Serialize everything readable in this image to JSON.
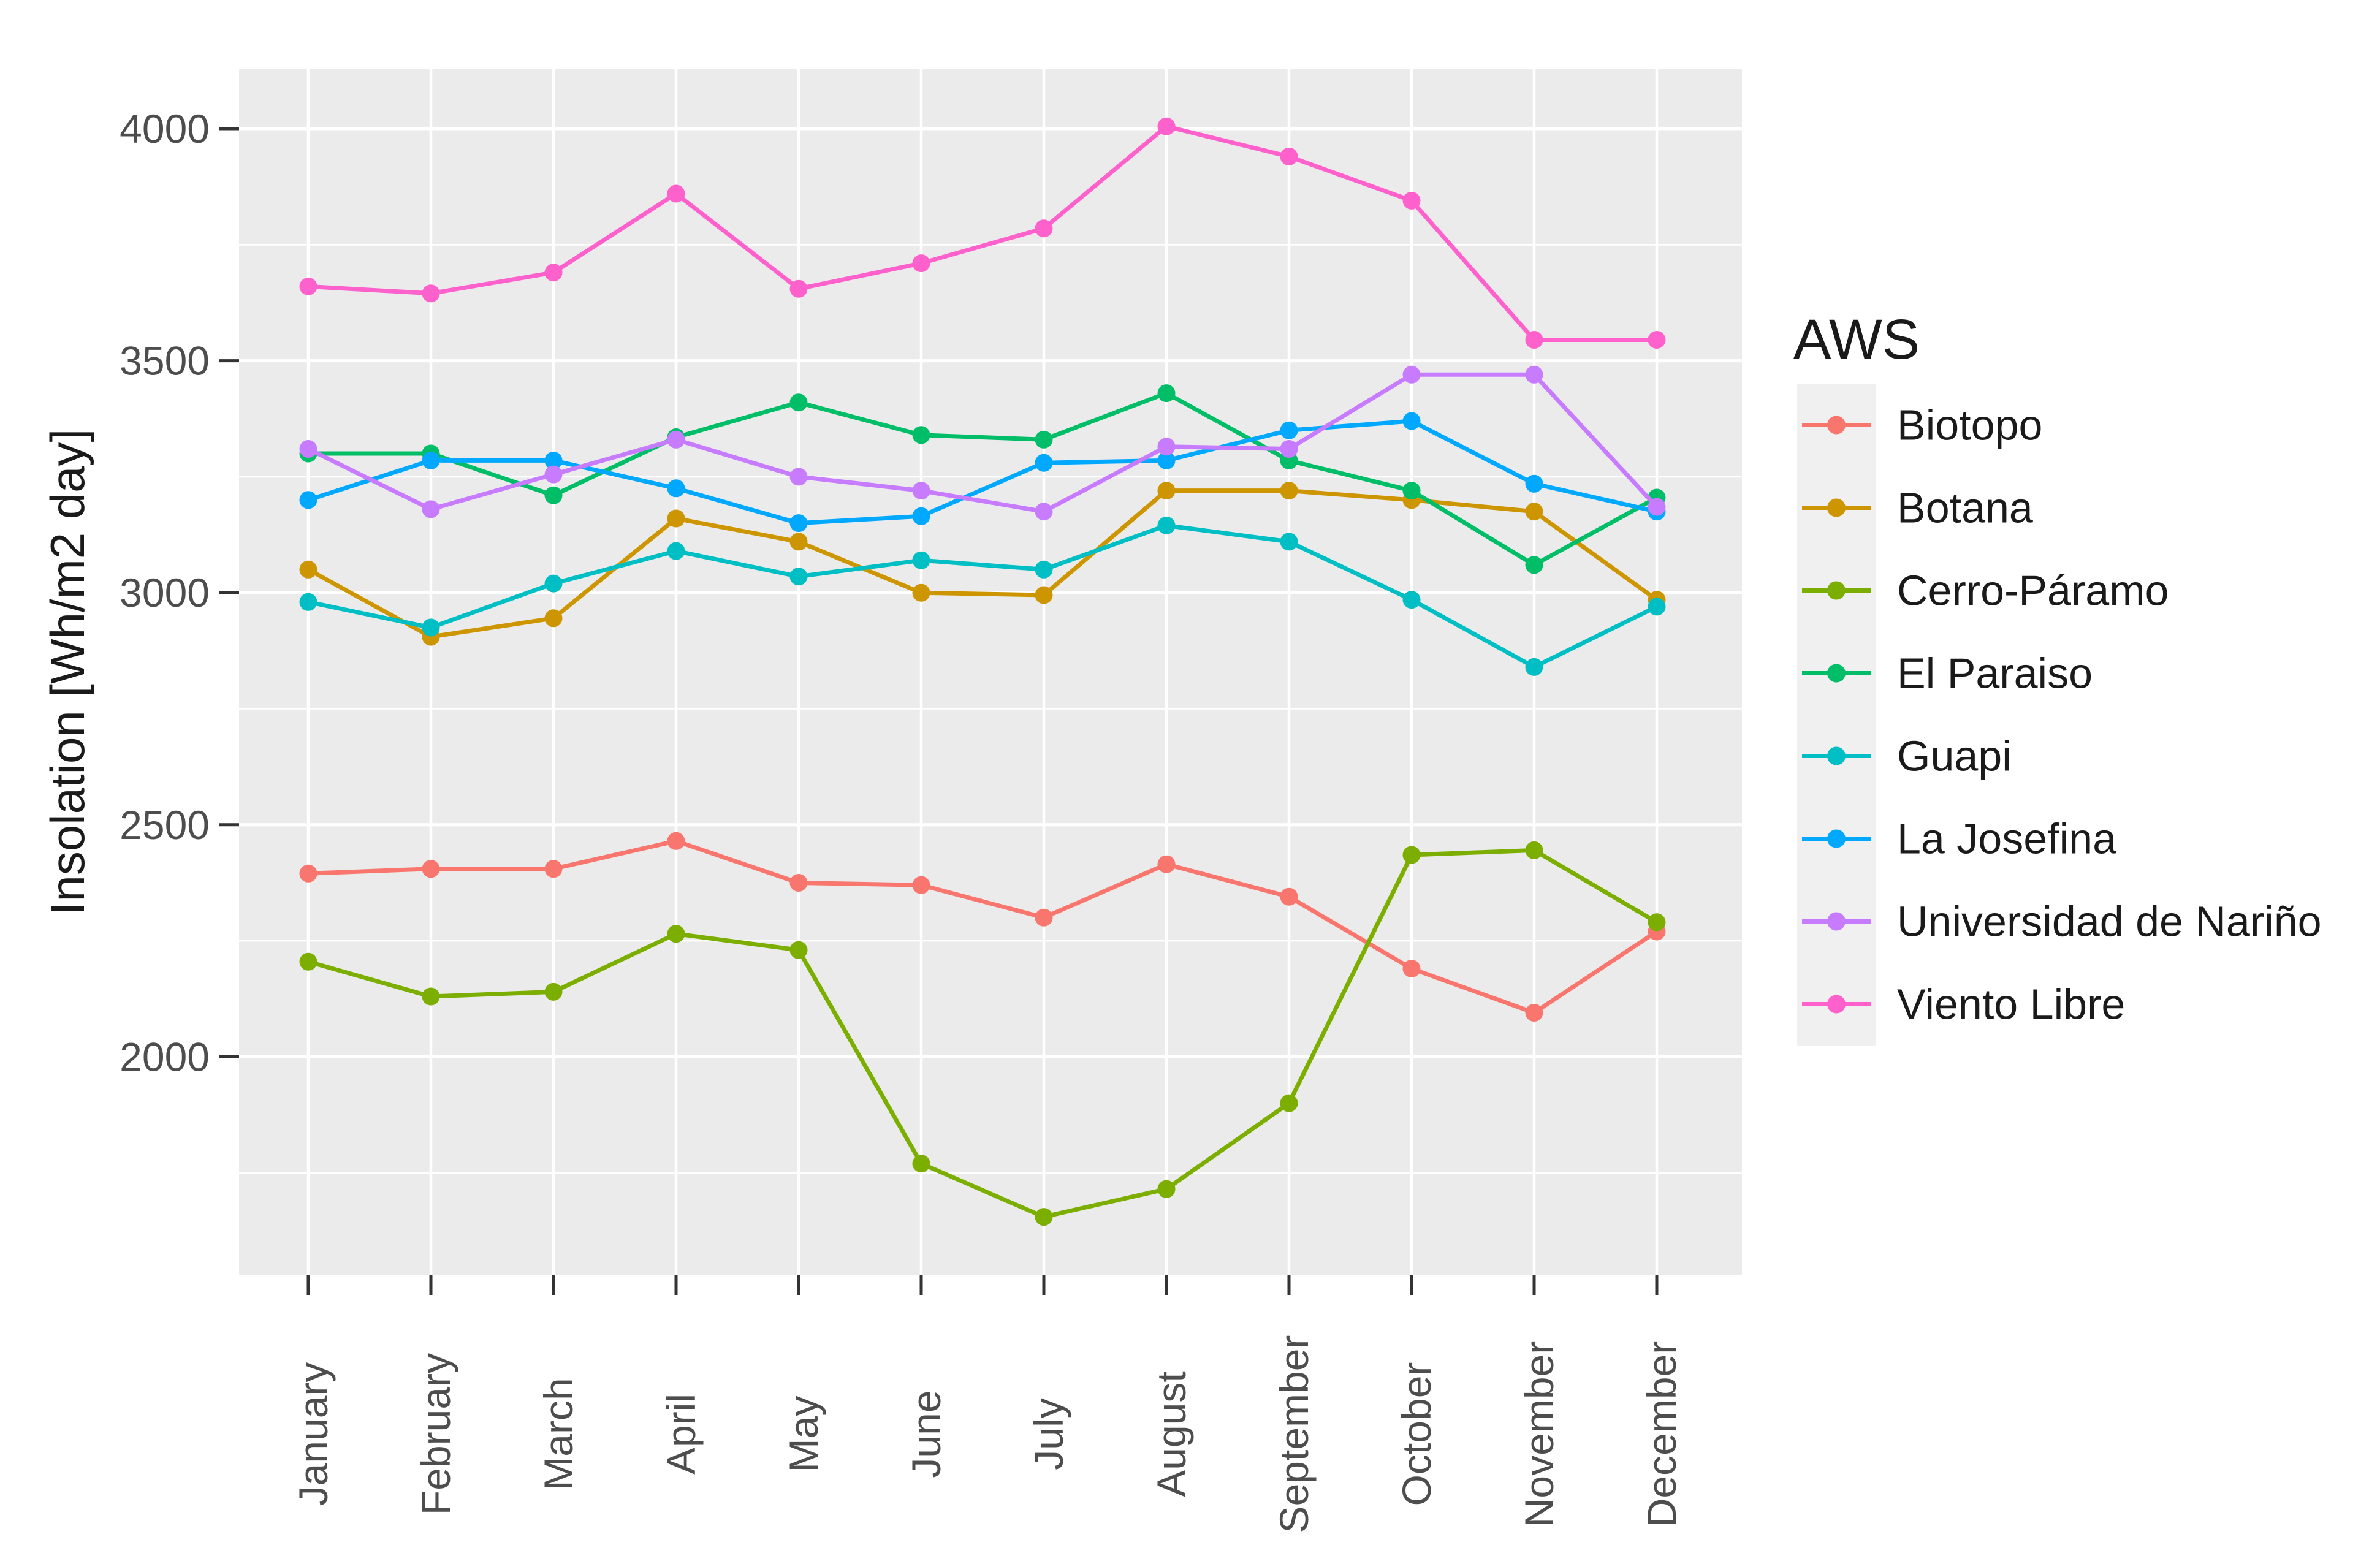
{
  "figure": {
    "kind": "ggplot-style line chart",
    "background": "#ffffff",
    "panel_background": "#EBEBEB",
    "grid_color": "#FFFFFF",
    "axis_text_color": "#4D4D4D",
    "tick_color": "#333333",
    "title_text_color": "#1a1a1a"
  },
  "chart_data": {
    "type": "line",
    "title": "",
    "xlabel": "",
    "ylabel": "Insolation [Wh/m2 day]",
    "categories": [
      "January",
      "February",
      "March",
      "April",
      "May",
      "June",
      "July",
      "August",
      "September",
      "October",
      "November",
      "December"
    ],
    "y_ticks": [
      2000,
      2500,
      3000,
      3500,
      4000
    ],
    "y_minor_gridlines": [
      1750,
      2250,
      2750,
      3250,
      3750
    ],
    "ylim": [
      1530,
      4128
    ],
    "grid": "white major+minor horizontal lines and vertical line per month on gray panel",
    "legend_position": "right",
    "legend_title": "AWS",
    "marker": "filled-circle",
    "series": [
      {
        "name": "Biotopo",
        "color": "#F8766D",
        "values": [
          2395,
          2405,
          2405,
          2465,
          2375,
          2370,
          2300,
          2415,
          2345,
          2190,
          2095,
          2270
        ]
      },
      {
        "name": "Botana",
        "color": "#CD9600",
        "values": [
          3050,
          2905,
          2945,
          3160,
          3110,
          3000,
          2995,
          3220,
          3220,
          3200,
          3175,
          2985
        ]
      },
      {
        "name": "Cerro-Páramo",
        "color": "#7CAE00",
        "values": [
          2205,
          2130,
          2140,
          2265,
          2230,
          1770,
          1655,
          1715,
          1900,
          2435,
          2445,
          2290
        ]
      },
      {
        "name": "El Paraiso",
        "color": "#00BE67",
        "values": [
          3300,
          3300,
          3210,
          3335,
          3410,
          3340,
          3330,
          3430,
          3285,
          3220,
          3060,
          3205
        ]
      },
      {
        "name": "Guapi",
        "color": "#00BFC4",
        "values": [
          2980,
          2925,
          3020,
          3090,
          3035,
          3070,
          3050,
          3145,
          3110,
          2985,
          2840,
          2970
        ]
      },
      {
        "name": "La Josefina",
        "color": "#00A9FF",
        "values": [
          3200,
          3285,
          3285,
          3225,
          3150,
          3165,
          3280,
          3285,
          3350,
          3370,
          3235,
          3175
        ]
      },
      {
        "name": "Universidad de Nariño",
        "color": "#C77CFF",
        "values": [
          3310,
          3180,
          3255,
          3330,
          3250,
          3220,
          3175,
          3315,
          3310,
          3470,
          3470,
          3185
        ]
      },
      {
        "name": "Viento Libre",
        "color": "#FF61CC",
        "values": [
          3660,
          3645,
          3690,
          3860,
          3655,
          3710,
          3785,
          4005,
          3940,
          3845,
          3545,
          3545
        ]
      }
    ]
  }
}
